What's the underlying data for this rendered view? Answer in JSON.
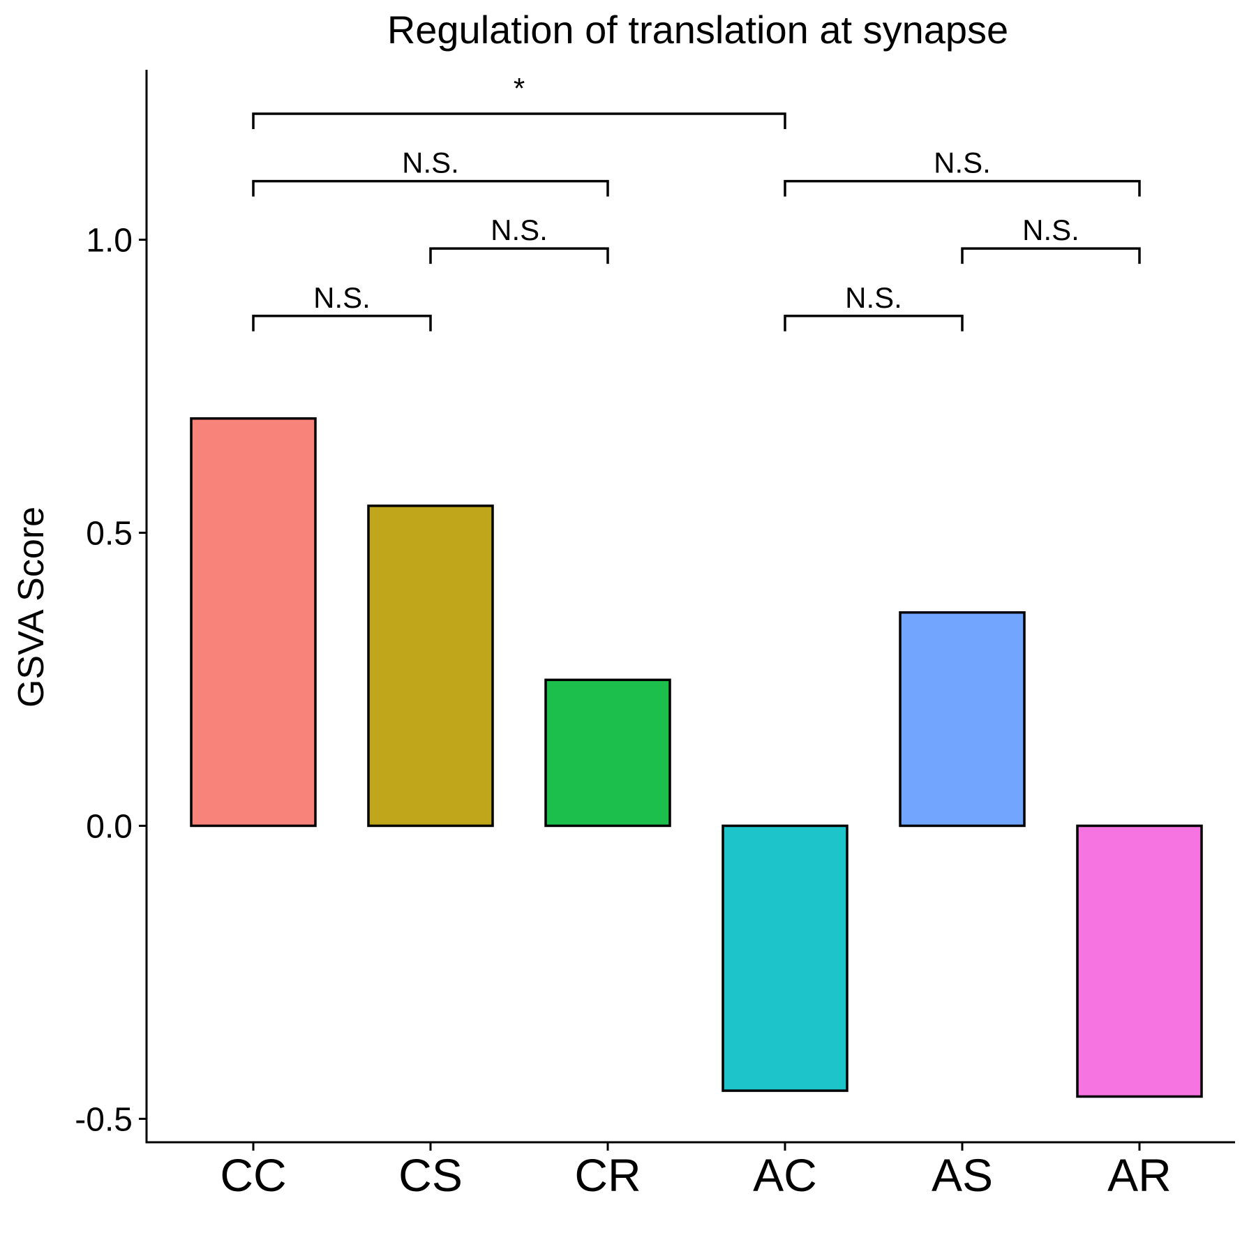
{
  "chart_data": {
    "type": "bar",
    "title": "Regulation of translation at synapse",
    "xlabel": "",
    "ylabel": "GSVA Score",
    "categories": [
      "CC",
      "CS",
      "CR",
      "AC",
      "AS",
      "AR"
    ],
    "values": [
      0.695,
      0.546,
      0.249,
      -0.452,
      0.364,
      -0.462
    ],
    "colors": [
      "#F8837A",
      "#BFA61A",
      "#1CBF4B",
      "#1DC4CA",
      "#71A5FE",
      "#F574E1"
    ],
    "ylim": [
      -0.54,
      1.29
    ],
    "yticks": [
      -0.5,
      0.0,
      0.5,
      1.0
    ],
    "ytick_labels": [
      "-0.5",
      "0.0",
      "0.5",
      "1.0"
    ],
    "grid": false,
    "legend": "none",
    "comparisons": [
      {
        "from": "CC",
        "to": "CS",
        "label": "N.S.",
        "y": 0.87
      },
      {
        "from": "CS",
        "to": "CR",
        "label": "N.S.",
        "y": 0.985
      },
      {
        "from": "CC",
        "to": "CR",
        "label": "N.S.",
        "y": 1.1
      },
      {
        "from": "CC",
        "to": "AC",
        "label": "*",
        "y": 1.215
      },
      {
        "from": "AC",
        "to": "AS",
        "label": "N.S.",
        "y": 0.87
      },
      {
        "from": "AS",
        "to": "AR",
        "label": "N.S.",
        "y": 0.985
      },
      {
        "from": "AC",
        "to": "AR",
        "label": "N.S.",
        "y": 1.1
      }
    ]
  }
}
